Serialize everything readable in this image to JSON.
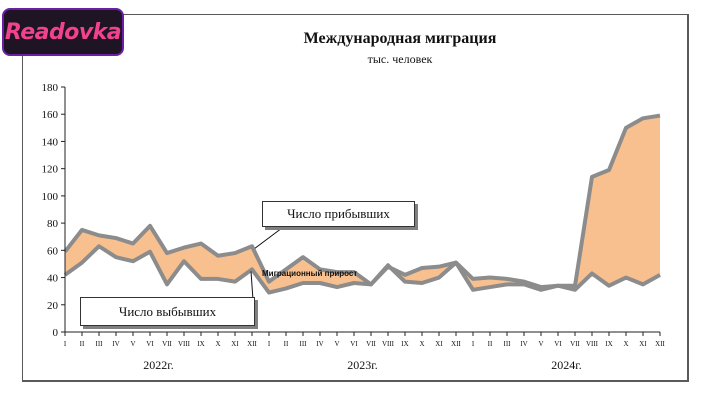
{
  "logo": {
    "text": "Readovka"
  },
  "chart_data": {
    "type": "area",
    "title": "Международная миграция",
    "subtitle": "тыс. человек",
    "ylim": [
      0,
      180
    ],
    "yticks": [
      0,
      20,
      40,
      60,
      80,
      100,
      120,
      140,
      160,
      180
    ],
    "grid": false,
    "months": [
      "I",
      "II",
      "III",
      "IV",
      "V",
      "VI",
      "VII",
      "VIII",
      "IX",
      "X",
      "XI",
      "XII",
      "I",
      "II",
      "III",
      "IV",
      "V",
      "VI",
      "VII",
      "VIII",
      "IX",
      "X",
      "XI",
      "XII",
      "I",
      "II",
      "III",
      "IV",
      "V",
      "VI",
      "VII",
      "VIII",
      "IX",
      "X",
      "XI",
      "XII"
    ],
    "years": [
      "2022г.",
      "2023г.",
      "2024г."
    ],
    "series": [
      {
        "name": "Число прибывших",
        "values": [
          59,
          75,
          71,
          69,
          65,
          78,
          58,
          62,
          65,
          56,
          58,
          63,
          37,
          46,
          55,
          46,
          44,
          44,
          35,
          48,
          42,
          47,
          48,
          51,
          39,
          40,
          39,
          37,
          33,
          34,
          34,
          114,
          119,
          150,
          157,
          159
        ]
      },
      {
        "name": "Число выбывших",
        "values": [
          42,
          51,
          63,
          55,
          52,
          59,
          35,
          52,
          39,
          39,
          37,
          46,
          29,
          32,
          36,
          36,
          33,
          36,
          35,
          49,
          37,
          36,
          40,
          51,
          31,
          33,
          35,
          35,
          31,
          34,
          31,
          43,
          34,
          40,
          35,
          42
        ]
      }
    ],
    "band_label": "Миграционный прирост",
    "colors": {
      "line": "#8c8c8c",
      "fill": "#f9c08f",
      "axis": "#222222"
    }
  }
}
